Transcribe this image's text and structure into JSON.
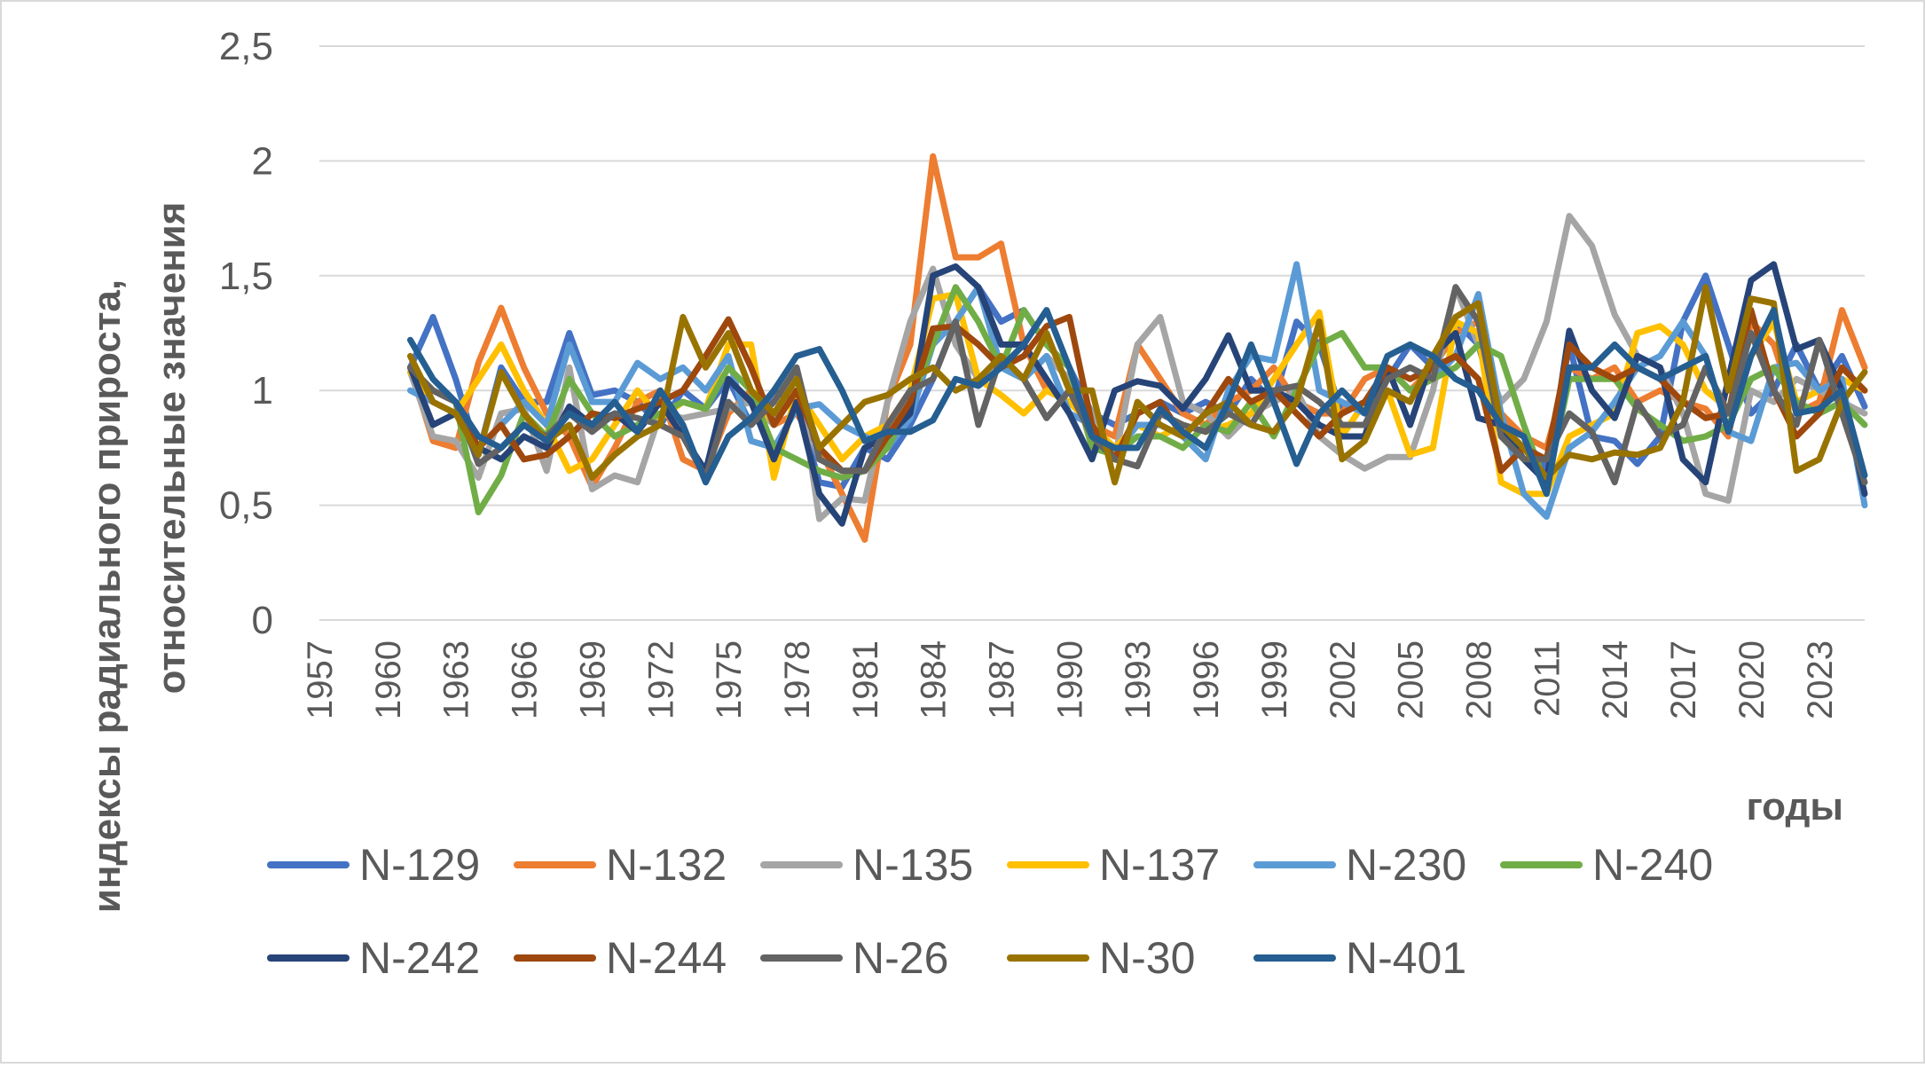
{
  "chart_data": {
    "type": "line",
    "ylabel_line1": "индексы радиального прироста,",
    "ylabel_line2": "относительные значения",
    "xlabel": "годы",
    "ylim": [
      0,
      2.5
    ],
    "y_ticks": [
      "0",
      "0,5",
      "1",
      "1,5",
      "2",
      "2,5"
    ],
    "x_range": [
      1957,
      2025
    ],
    "x_ticks": [
      1957,
      1960,
      1963,
      1966,
      1969,
      1972,
      1975,
      1978,
      1981,
      1984,
      1987,
      1990,
      1993,
      1996,
      1999,
      2002,
      2005,
      2008,
      2011,
      2014,
      2017,
      2020,
      2023
    ],
    "grid": "horizontal",
    "legend_position": "bottom",
    "x": [
      1961,
      1962,
      1963,
      1964,
      1965,
      1966,
      1967,
      1968,
      1969,
      1970,
      1971,
      1972,
      1973,
      1974,
      1975,
      1976,
      1977,
      1978,
      1979,
      1980,
      1981,
      1982,
      1983,
      1984,
      1985,
      1986,
      1987,
      1988,
      1989,
      1990,
      1991,
      1992,
      1993,
      1994,
      1995,
      1996,
      1997,
      1998,
      1999,
      2000,
      2001,
      2002,
      2003,
      2004,
      2005,
      2006,
      2007,
      2008,
      2009,
      2010,
      2011,
      2012,
      2013,
      2014,
      2015,
      2016,
      2017,
      2018,
      2019,
      2020,
      2021,
      2022,
      2023,
      2024,
      2025
    ],
    "series": [
      {
        "name": "N-129",
        "color": "#4472C4",
        "values": [
          1.1,
          1.32,
          1.05,
          0.72,
          1.1,
          0.95,
          0.95,
          1.25,
          0.98,
          1.0,
          0.95,
          0.85,
          1.0,
          0.92,
          1.05,
          0.85,
          1.0,
          0.95,
          0.6,
          0.58,
          0.75,
          0.7,
          0.85,
          1.05,
          1.3,
          1.45,
          1.3,
          1.35,
          1.2,
          1.1,
          0.9,
          0.85,
          0.9,
          0.95,
          0.9,
          0.95,
          0.9,
          1.05,
          0.95,
          1.3,
          1.2,
          0.9,
          0.95,
          1.05,
          1.2,
          1.1,
          1.3,
          1.2,
          0.85,
          0.8,
          0.65,
          1.2,
          0.8,
          0.78,
          0.68,
          0.8,
          1.3,
          1.5,
          1.2,
          0.9,
          1.0,
          1.2,
          1.0,
          1.15,
          0.93
        ]
      },
      {
        "name": "N-132",
        "color": "#ED7D31",
        "values": [
          1.1,
          0.78,
          0.75,
          1.12,
          1.36,
          1.1,
          0.9,
          0.8,
          0.58,
          0.75,
          0.95,
          1.0,
          0.7,
          0.65,
          0.9,
          1.0,
          0.85,
          0.9,
          0.75,
          0.55,
          0.35,
          0.95,
          1.2,
          2.02,
          1.58,
          1.58,
          1.64,
          1.2,
          1.0,
          0.95,
          0.85,
          0.8,
          1.2,
          1.05,
          0.9,
          0.85,
          0.95,
          1.0,
          1.1,
          0.95,
          0.9,
          0.9,
          1.05,
          1.1,
          1.0,
          1.1,
          1.25,
          1.3,
          0.9,
          0.8,
          0.75,
          1.1,
          1.05,
          1.1,
          0.95,
          1.0,
          0.95,
          0.92,
          0.8,
          1.3,
          1.2,
          0.9,
          0.95,
          1.35,
          1.1
        ]
      },
      {
        "name": "N-135",
        "color": "#A5A5A5",
        "values": [
          1.08,
          0.8,
          0.78,
          0.62,
          0.9,
          0.92,
          0.65,
          1.1,
          0.57,
          0.63,
          0.6,
          0.9,
          0.88,
          0.9,
          0.92,
          0.95,
          0.85,
          1.1,
          0.44,
          0.53,
          0.52,
          0.95,
          1.3,
          1.53,
          1.2,
          1.05,
          1.1,
          1.05,
          1.15,
          1.05,
          0.9,
          0.7,
          1.2,
          1.32,
          0.95,
          0.9,
          0.8,
          0.9,
          0.95,
          1.0,
          0.8,
          0.72,
          0.66,
          0.71,
          0.71,
          1.0,
          1.45,
          1.2,
          0.95,
          1.05,
          1.3,
          1.76,
          1.63,
          1.33,
          1.15,
          1.1,
          0.9,
          0.55,
          0.52,
          1.0,
          0.95,
          1.05,
          1.0,
          0.95,
          0.9
        ]
      },
      {
        "name": "N-137",
        "color": "#FFC000",
        "values": [
          1.08,
          0.95,
          0.9,
          1.05,
          1.2,
          1.0,
          0.85,
          0.65,
          0.7,
          0.85,
          1.0,
          0.88,
          0.95,
          0.92,
          1.2,
          1.2,
          0.62,
          1.0,
          0.85,
          0.7,
          0.8,
          0.85,
          1.0,
          1.4,
          1.42,
          1.05,
          0.98,
          0.9,
          1.0,
          0.95,
          0.85,
          0.75,
          0.85,
          0.8,
          0.85,
          0.82,
          0.85,
          0.9,
          1.05,
          1.2,
          1.34,
          0.8,
          0.95,
          1.0,
          0.72,
          0.75,
          1.3,
          1.25,
          0.6,
          0.55,
          0.55,
          0.8,
          0.85,
          0.9,
          1.25,
          1.28,
          1.2,
          1.0,
          0.92,
          1.15,
          1.3,
          0.95,
          1.0,
          1.05,
          1.0
        ]
      },
      {
        "name": "N-230",
        "color": "#5B9BD5",
        "values": [
          1.0,
          0.95,
          0.9,
          0.75,
          0.85,
          0.95,
          0.85,
          1.2,
          0.95,
          0.95,
          1.12,
          1.05,
          1.1,
          1.0,
          1.15,
          0.78,
          0.75,
          0.92,
          0.94,
          0.85,
          0.8,
          0.75,
          0.88,
          1.2,
          1.3,
          1.45,
          1.1,
          1.05,
          1.15,
          0.9,
          0.85,
          0.72,
          0.85,
          0.85,
          0.8,
          0.7,
          1.0,
          1.15,
          1.13,
          1.55,
          1.0,
          0.95,
          0.9,
          1.1,
          1.0,
          1.05,
          1.15,
          1.42,
          0.9,
          0.55,
          0.45,
          0.75,
          0.82,
          0.95,
          1.1,
          1.15,
          1.3,
          1.15,
          0.82,
          0.78,
          1.1,
          1.12,
          1.0,
          1.05,
          0.5
        ]
      },
      {
        "name": "N-240",
        "color": "#70AD47",
        "values": [
          1.1,
          1.0,
          0.95,
          0.47,
          0.63,
          0.9,
          0.8,
          1.05,
          0.9,
          0.8,
          0.85,
          0.9,
          0.95,
          0.92,
          1.1,
          1.0,
          0.75,
          0.7,
          0.65,
          0.62,
          0.65,
          0.75,
          0.95,
          1.2,
          1.45,
          1.3,
          1.1,
          1.35,
          1.2,
          1.1,
          0.75,
          0.72,
          0.8,
          0.8,
          0.75,
          0.85,
          0.82,
          0.95,
          0.8,
          1.0,
          1.2,
          1.25,
          1.1,
          1.1,
          1.0,
          1.05,
          1.1,
          1.2,
          1.15,
          0.85,
          0.58,
          1.05,
          1.05,
          1.05,
          0.92,
          0.85,
          0.78,
          0.8,
          0.85,
          1.05,
          1.1,
          0.95,
          0.9,
          0.95,
          0.85
        ]
      },
      {
        "name": "N-242",
        "color": "#264478",
        "values": [
          1.1,
          0.85,
          0.9,
          0.75,
          0.7,
          0.8,
          0.75,
          0.93,
          0.85,
          0.9,
          0.82,
          0.95,
          0.8,
          0.65,
          1.05,
          0.95,
          0.7,
          0.95,
          0.55,
          0.42,
          0.75,
          0.8,
          0.9,
          1.5,
          1.54,
          1.45,
          1.2,
          1.2,
          1.05,
          0.9,
          0.7,
          1.0,
          1.04,
          1.02,
          0.92,
          1.05,
          1.24,
          1.0,
          1.0,
          0.95,
          0.85,
          0.8,
          0.8,
          1.1,
          0.85,
          1.15,
          1.25,
          0.88,
          0.85,
          0.7,
          0.6,
          1.26,
          1.0,
          0.88,
          1.15,
          1.1,
          0.7,
          0.6,
          1.05,
          1.48,
          1.55,
          1.18,
          1.22,
          1.0,
          0.55
        ]
      },
      {
        "name": "N-244",
        "color": "#9E480E",
        "values": [
          1.1,
          1.0,
          0.95,
          0.75,
          0.85,
          0.7,
          0.72,
          0.8,
          0.9,
          0.88,
          0.92,
          0.95,
          1.0,
          1.15,
          1.31,
          1.1,
          0.85,
          1.0,
          0.75,
          0.65,
          0.65,
          0.8,
          0.95,
          1.27,
          1.28,
          1.2,
          1.1,
          1.15,
          1.28,
          1.32,
          0.85,
          0.7,
          0.9,
          0.95,
          0.8,
          0.9,
          1.05,
          0.95,
          1.0,
          0.9,
          0.8,
          0.9,
          0.95,
          1.1,
          1.05,
          1.1,
          1.15,
          1.05,
          0.65,
          0.75,
          0.7,
          1.2,
          1.1,
          1.05,
          1.1,
          1.05,
          0.95,
          0.88,
          0.9,
          1.35,
          1.0,
          0.8,
          0.9,
          1.1,
          1.0
        ]
      },
      {
        "name": "N-26",
        "color": "#636363",
        "values": [
          1.1,
          1.0,
          0.95,
          0.68,
          0.75,
          0.85,
          0.8,
          0.9,
          0.82,
          0.9,
          0.88,
          0.85,
          0.8,
          0.62,
          0.95,
          0.85,
          0.95,
          1.1,
          0.7,
          0.65,
          0.65,
          0.85,
          1.0,
          1.05,
          1.3,
          0.85,
          1.15,
          1.05,
          0.88,
          1.0,
          0.8,
          0.7,
          0.67,
          0.9,
          0.85,
          0.82,
          0.9,
          0.85,
          1.0,
          1.02,
          0.95,
          0.85,
          0.85,
          1.05,
          1.1,
          1.05,
          1.45,
          1.3,
          0.8,
          0.7,
          0.7,
          0.9,
          0.82,
          0.6,
          0.95,
          0.8,
          0.85,
          1.1,
          0.9,
          1.25,
          1.0,
          0.85,
          1.22,
          0.9,
          0.6
        ]
      },
      {
        "name": "N-30",
        "color": "#997300",
        "values": [
          1.15,
          0.95,
          0.9,
          0.72,
          1.08,
          0.9,
          0.78,
          0.85,
          0.62,
          0.72,
          0.8,
          0.85,
          1.32,
          1.1,
          1.25,
          1.0,
          0.9,
          1.05,
          0.75,
          0.85,
          0.95,
          0.98,
          1.05,
          1.1,
          1.0,
          1.05,
          1.15,
          1.05,
          1.25,
          1.0,
          1.0,
          0.6,
          0.95,
          0.85,
          0.8,
          0.9,
          0.95,
          0.85,
          0.82,
          0.95,
          1.3,
          0.7,
          0.78,
          1.0,
          0.95,
          1.15,
          1.32,
          1.38,
          0.85,
          0.75,
          0.62,
          0.72,
          0.7,
          0.73,
          0.72,
          0.75,
          0.95,
          1.45,
          1.0,
          1.4,
          1.38,
          0.65,
          0.7,
          0.95,
          1.08
        ]
      },
      {
        "name": "N-401",
        "color": "#255E91",
        "values": [
          1.22,
          1.05,
          0.95,
          0.8,
          0.75,
          0.85,
          0.78,
          0.9,
          0.85,
          0.95,
          0.82,
          1.0,
          0.85,
          0.6,
          0.8,
          0.88,
          1.0,
          1.15,
          1.18,
          1.0,
          0.78,
          0.82,
          0.82,
          0.87,
          1.05,
          1.02,
          1.1,
          1.2,
          1.35,
          1.1,
          0.8,
          0.75,
          0.75,
          0.92,
          0.82,
          0.75,
          0.95,
          1.2,
          0.95,
          0.68,
          0.9,
          1.0,
          0.9,
          1.15,
          1.2,
          1.15,
          1.05,
          1.0,
          0.85,
          0.8,
          0.55,
          1.1,
          1.1,
          1.2,
          1.1,
          1.05,
          1.1,
          1.15,
          0.82,
          1.15,
          1.35,
          0.9,
          0.92,
          1.0,
          0.63
        ]
      }
    ]
  }
}
